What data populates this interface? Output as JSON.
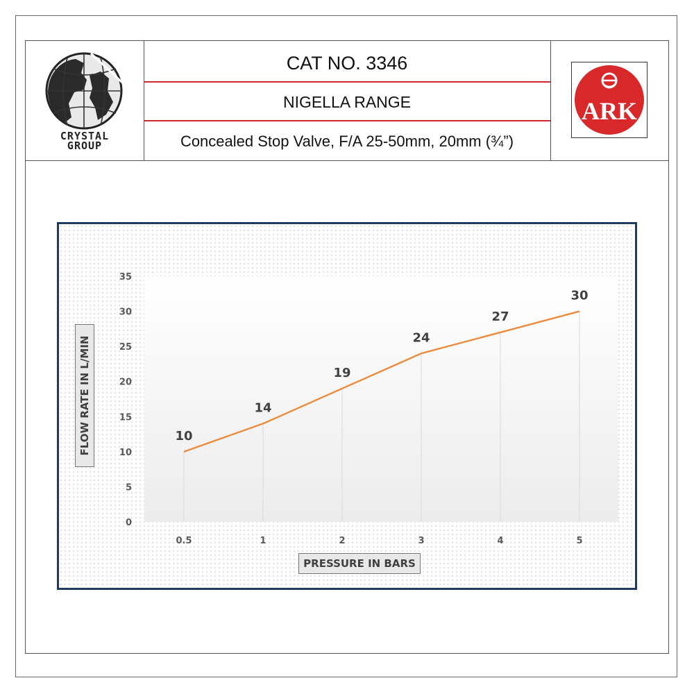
{
  "header": {
    "cat_no": "CAT NO. 3346",
    "range": "NIGELLA RANGE",
    "description": "Concealed Stop Valve, F/A 25-50mm, 20mm (¾”)",
    "left_logo": {
      "icon": "globe-icon",
      "line1": "CRYSTAL",
      "line2": "GROUP"
    },
    "right_logo": {
      "icon": "ark-logo",
      "text": "ARK",
      "color": "#d8282a"
    }
  },
  "colors": {
    "line": "#ed8b3d",
    "divider": "#d22a2a",
    "frame": "#1f3b5f"
  },
  "chart_data": {
    "type": "line",
    "title": "",
    "xlabel": "PRESSURE IN BARS",
    "ylabel": "FLOW RATE  IN L/MIN",
    "categories": [
      "0.5",
      "1",
      "2",
      "3",
      "4",
      "5"
    ],
    "series": [
      {
        "values": [
          10,
          14,
          19,
          24,
          27,
          30
        ]
      }
    ],
    "data_labels": [
      "10",
      "14",
      "19",
      "24",
      "27",
      "30"
    ],
    "yticks": [
      "0",
      "5",
      "10",
      "15",
      "20",
      "25",
      "30",
      "35"
    ],
    "ylim": [
      0,
      35
    ],
    "grid": "vertical drop lines",
    "legend": "none"
  }
}
